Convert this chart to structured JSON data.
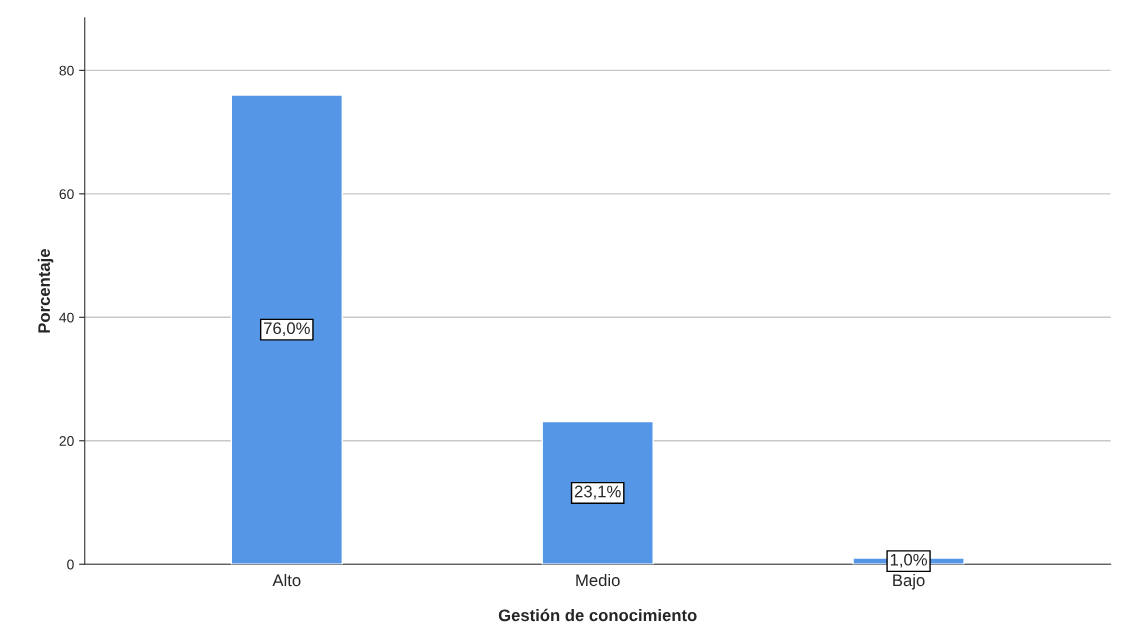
{
  "chart_data": {
    "type": "bar",
    "xlabel": "Gestión de conocimiento",
    "ylabel": "Porcentaje",
    "categories": [
      "Alto",
      "Medio",
      "Bajo"
    ],
    "values": [
      76.0,
      23.1,
      1.0
    ],
    "value_labels": [
      "76,0%",
      "23,1%",
      "1,0%"
    ],
    "color": "#5596e6",
    "ylim": [
      0,
      88.5
    ],
    "yticks": [
      0,
      20,
      40,
      60,
      80
    ],
    "grid": "y",
    "legend": false
  }
}
